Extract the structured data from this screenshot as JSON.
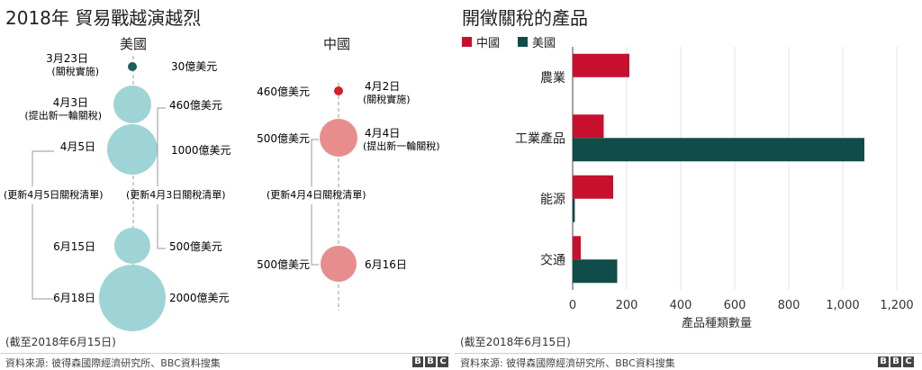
{
  "left": {
    "title": "2018年 貿易戰越演越烈",
    "us_header": "美國",
    "cn_header": "中國",
    "us_events": [
      {
        "date": "3月23日",
        "sub": "(關稅實施)",
        "amount": "30億美元",
        "value": 30
      },
      {
        "date": "4月3日",
        "sub": "(提出新一輪關稅)",
        "amount": "460億美元",
        "value": 460
      },
      {
        "date": "4月5日",
        "sub": "",
        "amount": "1000億美元",
        "value": 1000
      },
      {
        "date": "6月15日",
        "sub": "",
        "amount": "500億美元",
        "value": 500
      },
      {
        "date": "6月18日",
        "sub": "",
        "amount": "2000億美元",
        "value": 2000
      }
    ],
    "us_update_left": "(更新4月5日關稅清單)",
    "us_update_right": "(更新4月3日關稅清單)",
    "cn_events": [
      {
        "date": "4月2日",
        "sub": "(關稅實施)",
        "amount": "460億美元",
        "value": 460
      },
      {
        "date": "4月4日",
        "sub": "(提出新一輪關稅)",
        "amount": "500億美元",
        "value": 500
      },
      {
        "date": "6月16日",
        "sub": "",
        "amount": "500億美元",
        "value": 500
      }
    ],
    "cn_update": "(更新4月4日關稅清單)",
    "note": "(截至2018年6月15日)",
    "source": "資料來源: 彼得森國際經濟研究所、BBC資料搜集",
    "colors": {
      "us": "#9fd4d6",
      "us_dark": "#1f5e5e",
      "cn": "#e88d8d",
      "cn_dark": "#d0202a"
    }
  },
  "right": {
    "title": "開徵關稅的產品",
    "legend": [
      {
        "name": "中國",
        "color": "#c8102e"
      },
      {
        "name": "美國",
        "color": "#0f4c4a"
      }
    ],
    "note": "(截至2018年6月15日)",
    "source": "資料來源: 彼得森國際經濟研究所、BBC資料搜集"
  },
  "bbc_letters": [
    "B",
    "B",
    "C"
  ],
  "chart_data": {
    "type": "bar",
    "orientation": "horizontal",
    "categories": [
      "農業",
      "工業產品",
      "能源",
      "交通"
    ],
    "series": [
      {
        "name": "中國",
        "values": [
          210,
          115,
          150,
          30
        ]
      },
      {
        "name": "美國",
        "values": [
          0,
          1080,
          8,
          165
        ]
      }
    ],
    "xlabel": "產品種類數量",
    "xlim": [
      0,
      1200
    ],
    "xticks": [
      "0",
      "200",
      "400",
      "600",
      "800",
      "1,000",
      "1,200"
    ],
    "grid": true,
    "legend_position": "top-left"
  }
}
